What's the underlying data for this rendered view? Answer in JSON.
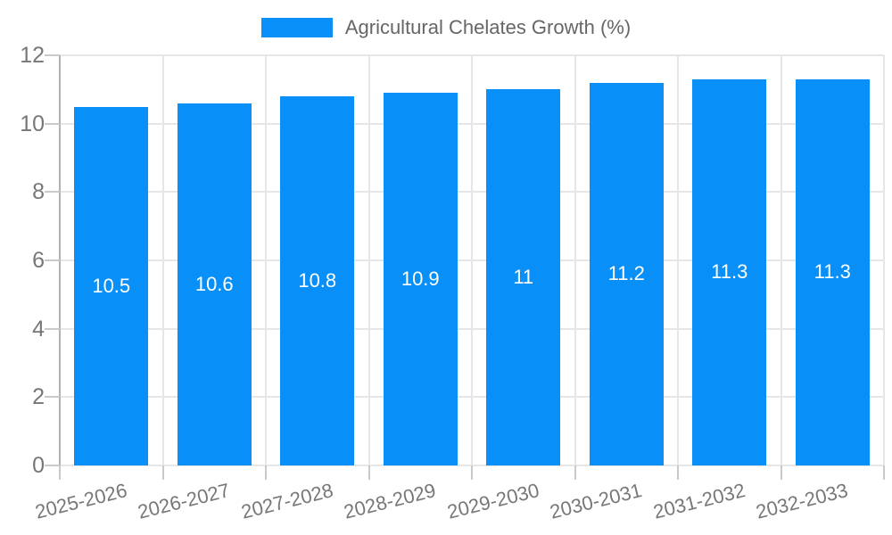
{
  "legend": {
    "label": "Agricultural Chelates Growth (%)"
  },
  "colors": {
    "bar": "#0890f8",
    "grid": "#e6e6e6",
    "axis": "#b2b2b2",
    "tick": "#c9c9c9",
    "axis_text": "#777777",
    "legend_text": "#666666",
    "value_text": "#ffffff",
    "background": "#ffffff"
  },
  "chart_data": {
    "type": "bar",
    "title": "Agricultural Chelates Growth (%)",
    "categories": [
      "2025-2026",
      "2026-2027",
      "2027-2028",
      "2028-2029",
      "2029-2030",
      "2030-2031",
      "2031-2032",
      "2032-2033"
    ],
    "values": [
      10.5,
      10.6,
      10.8,
      10.9,
      11,
      11.2,
      11.3,
      11.3
    ],
    "value_labels": [
      "10.5",
      "10.6",
      "10.8",
      "10.9",
      "11",
      "11.2",
      "11.3",
      "11.3"
    ],
    "series_name": "Agricultural Chelates Growth (%)",
    "xlabel": "",
    "ylabel": "",
    "ylim": [
      0,
      12
    ],
    "yticks": [
      0,
      2,
      4,
      6,
      8,
      10,
      12
    ],
    "grid": true,
    "legend_position": "top-center",
    "x_tick_rotation_deg": -14
  }
}
